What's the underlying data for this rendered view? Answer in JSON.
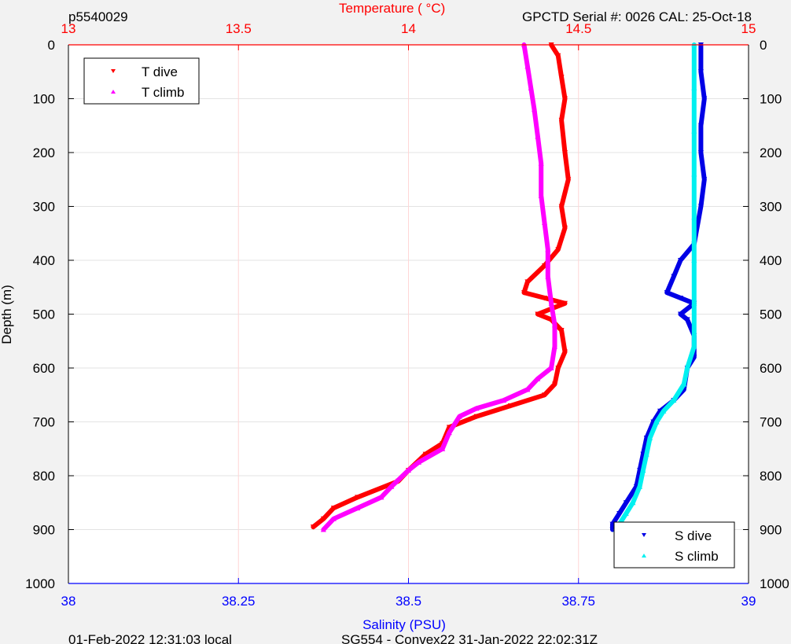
{
  "header": {
    "profile_id": "p5540029",
    "top_axis_title": "Temperature (    °C)",
    "serial_info": "GPCTD Serial #: 0026 CAL: 25-Oct-18"
  },
  "footer": {
    "local_time": "01-Feb-2022 12:31:03 local",
    "mission": "SG554 - Convex22 31-Jan-2022 22:02:31Z"
  },
  "colors": {
    "t_dive": "#ff0000",
    "t_climb": "#ff00ff",
    "s_dive": "#0000e6",
    "s_climb": "#00f0f0",
    "temp_axis": "#ff0000",
    "sal_axis": "#0000ff",
    "plot_bg": "#ffffff",
    "figure_bg": "#f2f2f2"
  },
  "chart_data": {
    "type": "scatter",
    "y_label": "Depth (m)",
    "y_reversed": true,
    "y_range": [
      0,
      1000
    ],
    "y_ticks": [
      "0",
      "100",
      "200",
      "300",
      "400",
      "500",
      "600",
      "700",
      "800",
      "900",
      "1000"
    ],
    "temperature_axis": {
      "position": "top",
      "range": [
        13,
        15
      ],
      "ticks": [
        "13",
        "13.5",
        "14",
        "14.5",
        "15"
      ]
    },
    "salinity_axis": {
      "label": "Salinity (PSU)",
      "position": "bottom",
      "range": [
        38,
        39
      ],
      "ticks": [
        "38",
        "38.25",
        "38.5",
        "38.75",
        "39"
      ]
    },
    "grid": true,
    "legends": [
      {
        "placement": "top-left",
        "entries": [
          "T dive",
          "T climb"
        ]
      },
      {
        "placement": "bottom-right",
        "entries": [
          "S dive",
          "S climb"
        ]
      }
    ],
    "series": [
      {
        "name": "T dive",
        "axis": "temperature",
        "marker": "down-triangle",
        "points": [
          [
            14.42,
            0
          ],
          [
            14.44,
            20
          ],
          [
            14.45,
            60
          ],
          [
            14.46,
            100
          ],
          [
            14.45,
            140
          ],
          [
            14.46,
            200
          ],
          [
            14.47,
            250
          ],
          [
            14.45,
            300
          ],
          [
            14.46,
            340
          ],
          [
            14.44,
            380
          ],
          [
            14.4,
            410
          ],
          [
            14.35,
            440
          ],
          [
            14.34,
            460
          ],
          [
            14.4,
            470
          ],
          [
            14.46,
            480
          ],
          [
            14.38,
            500
          ],
          [
            14.42,
            510
          ],
          [
            14.45,
            530
          ],
          [
            14.46,
            570
          ],
          [
            14.44,
            600
          ],
          [
            14.43,
            630
          ],
          [
            14.4,
            650
          ],
          [
            14.3,
            670
          ],
          [
            14.2,
            690
          ],
          [
            14.12,
            710
          ],
          [
            14.1,
            740
          ],
          [
            14.05,
            760
          ],
          [
            14.0,
            790
          ],
          [
            13.97,
            810
          ],
          [
            13.85,
            840
          ],
          [
            13.78,
            860
          ],
          [
            13.75,
            880
          ],
          [
            13.72,
            895
          ]
        ]
      },
      {
        "name": "T climb",
        "axis": "temperature",
        "marker": "up-triangle",
        "points": [
          [
            14.34,
            0
          ],
          [
            14.35,
            40
          ],
          [
            14.36,
            80
          ],
          [
            14.37,
            120
          ],
          [
            14.38,
            170
          ],
          [
            14.39,
            220
          ],
          [
            14.39,
            280
          ],
          [
            14.4,
            330
          ],
          [
            14.41,
            380
          ],
          [
            14.41,
            430
          ],
          [
            14.42,
            480
          ],
          [
            14.43,
            520
          ],
          [
            14.43,
            560
          ],
          [
            14.42,
            600
          ],
          [
            14.38,
            620
          ],
          [
            14.35,
            640
          ],
          [
            14.28,
            660
          ],
          [
            14.2,
            675
          ],
          [
            14.15,
            690
          ],
          [
            14.12,
            720
          ],
          [
            14.1,
            750
          ],
          [
            14.03,
            775
          ],
          [
            14.0,
            790
          ],
          [
            13.95,
            820
          ],
          [
            13.92,
            840
          ],
          [
            13.85,
            860
          ],
          [
            13.78,
            880
          ],
          [
            13.75,
            900
          ]
        ]
      },
      {
        "name": "S dive",
        "axis": "salinity",
        "marker": "down-triangle",
        "points": [
          [
            38.93,
            0
          ],
          [
            38.93,
            50
          ],
          [
            38.935,
            100
          ],
          [
            38.93,
            150
          ],
          [
            38.93,
            200
          ],
          [
            38.935,
            250
          ],
          [
            38.93,
            300
          ],
          [
            38.92,
            370
          ],
          [
            38.9,
            400
          ],
          [
            38.89,
            430
          ],
          [
            38.88,
            460
          ],
          [
            38.9,
            470
          ],
          [
            38.92,
            480
          ],
          [
            38.9,
            500
          ],
          [
            38.91,
            510
          ],
          [
            38.92,
            540
          ],
          [
            38.92,
            580
          ],
          [
            38.91,
            600
          ],
          [
            38.905,
            640
          ],
          [
            38.89,
            660
          ],
          [
            38.87,
            680
          ],
          [
            38.86,
            700
          ],
          [
            38.85,
            730
          ],
          [
            38.845,
            760
          ],
          [
            38.84,
            790
          ],
          [
            38.835,
            820
          ],
          [
            38.82,
            850
          ],
          [
            38.81,
            870
          ],
          [
            38.8,
            890
          ],
          [
            38.8,
            900
          ]
        ]
      },
      {
        "name": "S climb",
        "axis": "salinity",
        "marker": "up-triangle",
        "points": [
          [
            38.92,
            0
          ],
          [
            38.92,
            80
          ],
          [
            38.92,
            160
          ],
          [
            38.92,
            240
          ],
          [
            38.92,
            320
          ],
          [
            38.92,
            400
          ],
          [
            38.92,
            480
          ],
          [
            38.92,
            560
          ],
          [
            38.91,
            600
          ],
          [
            38.905,
            630
          ],
          [
            38.89,
            660
          ],
          [
            38.875,
            680
          ],
          [
            38.865,
            700
          ],
          [
            38.855,
            730
          ],
          [
            38.85,
            760
          ],
          [
            38.845,
            790
          ],
          [
            38.84,
            820
          ],
          [
            38.83,
            850
          ],
          [
            38.82,
            870
          ],
          [
            38.81,
            890
          ],
          [
            38.805,
            900
          ]
        ]
      }
    ]
  }
}
